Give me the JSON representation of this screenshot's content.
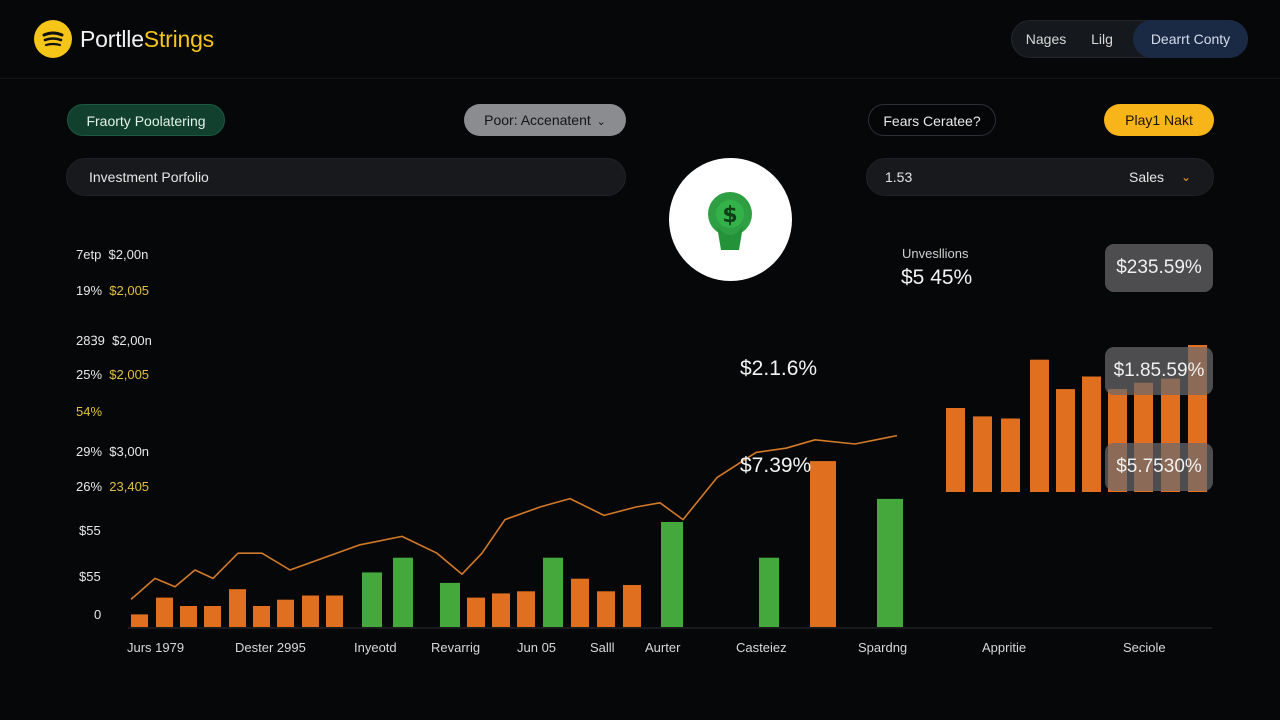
{
  "header": {
    "brand_main": "Portlle",
    "brand_accent": "Strings",
    "logo_icon": "spotify-like-icon",
    "nav": [
      "Nages",
      "Lilg",
      "Dearrt Conty"
    ],
    "active_nav": "Dearrt Conty"
  },
  "controls": {
    "filter_label": "Fraorty Poolatering",
    "dropdown_label": "Poor: Accenatent",
    "outline_label": "Fears Ceratee?",
    "primary_label": "Play1 Nakt"
  },
  "fields": {
    "portfolio_name": "Investment Porfolio",
    "amount": "1.53",
    "select_value": "Sales"
  },
  "hero_icon": "money-bag-icon",
  "legend": [
    {
      "a": "7etp",
      "b": "$2,00n"
    },
    {
      "a": "19%",
      "b": "$2,005"
    },
    {
      "a": "28Ꝫ9",
      "b": "$2,00n"
    },
    {
      "a": "25%",
      "b": "$2,005"
    },
    {
      "a": "54%",
      "b": ""
    },
    {
      "a": "29%",
      "b": "$3,00n"
    },
    {
      "a": "26%",
      "b": "23,405"
    },
    {
      "a": "$55",
      "b": ""
    },
    {
      "a": "$55",
      "b": ""
    },
    {
      "a": "0",
      "b": ""
    }
  ],
  "stats": {
    "label": "Unvesllions",
    "value": "$5 45%",
    "badges": [
      "$235.59%",
      "$1.85.59%",
      "$5.7530%"
    ],
    "annotations": [
      "$2.1.6%",
      "$7.39%"
    ]
  },
  "chart_data": {
    "type": "bar",
    "x_labels": [
      "Jurs 1979",
      "Dester 2995",
      "Inyeotd",
      "Revarrig",
      "Jun 05",
      "Salll",
      "Aurter",
      "Casteiez",
      "Spardng",
      "Appritie",
      "Seciole"
    ],
    "bars": [
      {
        "value": 3,
        "color": "#e07020"
      },
      {
        "value": 7,
        "color": "#e07020"
      },
      {
        "value": 5,
        "color": "#e07020"
      },
      {
        "value": 5,
        "color": "#e07020"
      },
      {
        "value": 9,
        "color": "#e07020"
      },
      {
        "value": 5,
        "color": "#e07020"
      },
      {
        "value": 6.5,
        "color": "#e07020"
      },
      {
        "value": 7.5,
        "color": "#e07020"
      },
      {
        "value": 7.5,
        "color": "#e07020"
      },
      {
        "value": 13,
        "color": "#44a83c"
      },
      {
        "value": 16.5,
        "color": "#44a83c"
      },
      {
        "value": 10.5,
        "color": "#44a83c"
      },
      {
        "value": 7,
        "color": "#e07020"
      },
      {
        "value": 8,
        "color": "#e07020"
      },
      {
        "value": 8.5,
        "color": "#e07020"
      },
      {
        "value": 16.5,
        "color": "#44a83c"
      },
      {
        "value": 11.5,
        "color": "#e07020"
      },
      {
        "value": 8.5,
        "color": "#e07020"
      },
      {
        "value": 10,
        "color": "#e07020"
      },
      {
        "value": 25,
        "color": "#44a83c"
      },
      {
        "value": 16.5,
        "color": "#44a83c"
      },
      {
        "value": 39.5,
        "color": "#e07020"
      },
      {
        "value": 30.5,
        "color": "#44a83c"
      }
    ],
    "trend": [
      3,
      8,
      6,
      10,
      8,
      14,
      14,
      10,
      13,
      16,
      18,
      14,
      9,
      14,
      22,
      25,
      27,
      23,
      25,
      26,
      22,
      32,
      38,
      39,
      41,
      40,
      42
    ],
    "inset_bars": [
      20,
      18,
      17.5,
      31.5,
      24.5,
      27.5,
      24.5,
      26,
      27,
      35
    ],
    "inset_color": "#e07020"
  }
}
